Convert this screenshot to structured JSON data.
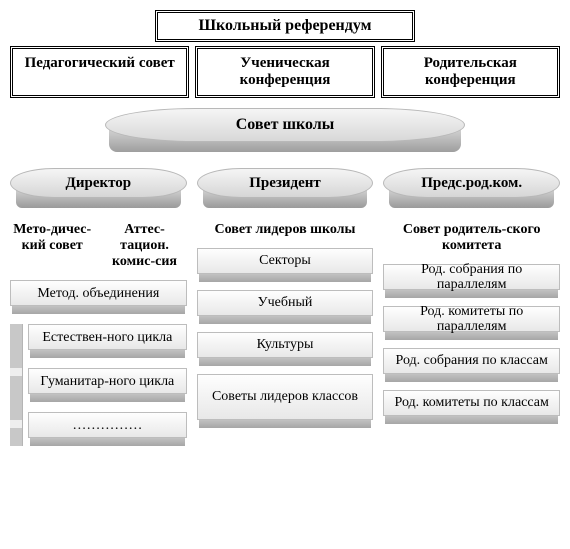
{
  "type": "org-chart",
  "background_color": "#ffffff",
  "border_color": "#000000",
  "pill_gradient": [
    "#f5f5f5",
    "#d6d6d6"
  ],
  "pill_depth_gradient": [
    "#cfcfcf",
    "#9a9a9a"
  ],
  "bar_gradient": [
    "#fefefe",
    "#e8e8e8"
  ],
  "bar_depth_gradient": [
    "#d6d6d6",
    "#a6a6a6"
  ],
  "font_family": "Times New Roman",
  "title": "Школьный референдум",
  "councils": {
    "pedagogical": "Педагогический совет",
    "student": "Ученическая конференция",
    "parent": "Родительская конференция"
  },
  "school_council": "Совет школы",
  "roles": {
    "director": "Директор",
    "president": "Президент",
    "parent_chair": "Предс.род.ком."
  },
  "left": {
    "method_council": "Мето-дичес-кий совет",
    "attest_committee": "Аттес-тацион. комис-сия",
    "method_unions": "Метод. объединения",
    "items": {
      "natural": "Естествен-ного цикла",
      "humanitarian": "Гуманитар-ного цикла",
      "ellipsis": "……………"
    }
  },
  "center": {
    "leaders_council": "Совет лидеров школы",
    "items": {
      "sectors": "Секторы",
      "study": "Учебный",
      "culture": "Культуры",
      "class_leaders": "Советы лидеров классов"
    }
  },
  "right": {
    "parent_committee": "Совет родитель-ского комитета",
    "items": {
      "meetings_parallel": "Род. собрания по параллелям",
      "committees_parallel": "Род. комитеты по параллелям",
      "meetings_class": "Род. собрания по классам",
      "committees_class": "Род. комитеты по классам"
    }
  }
}
